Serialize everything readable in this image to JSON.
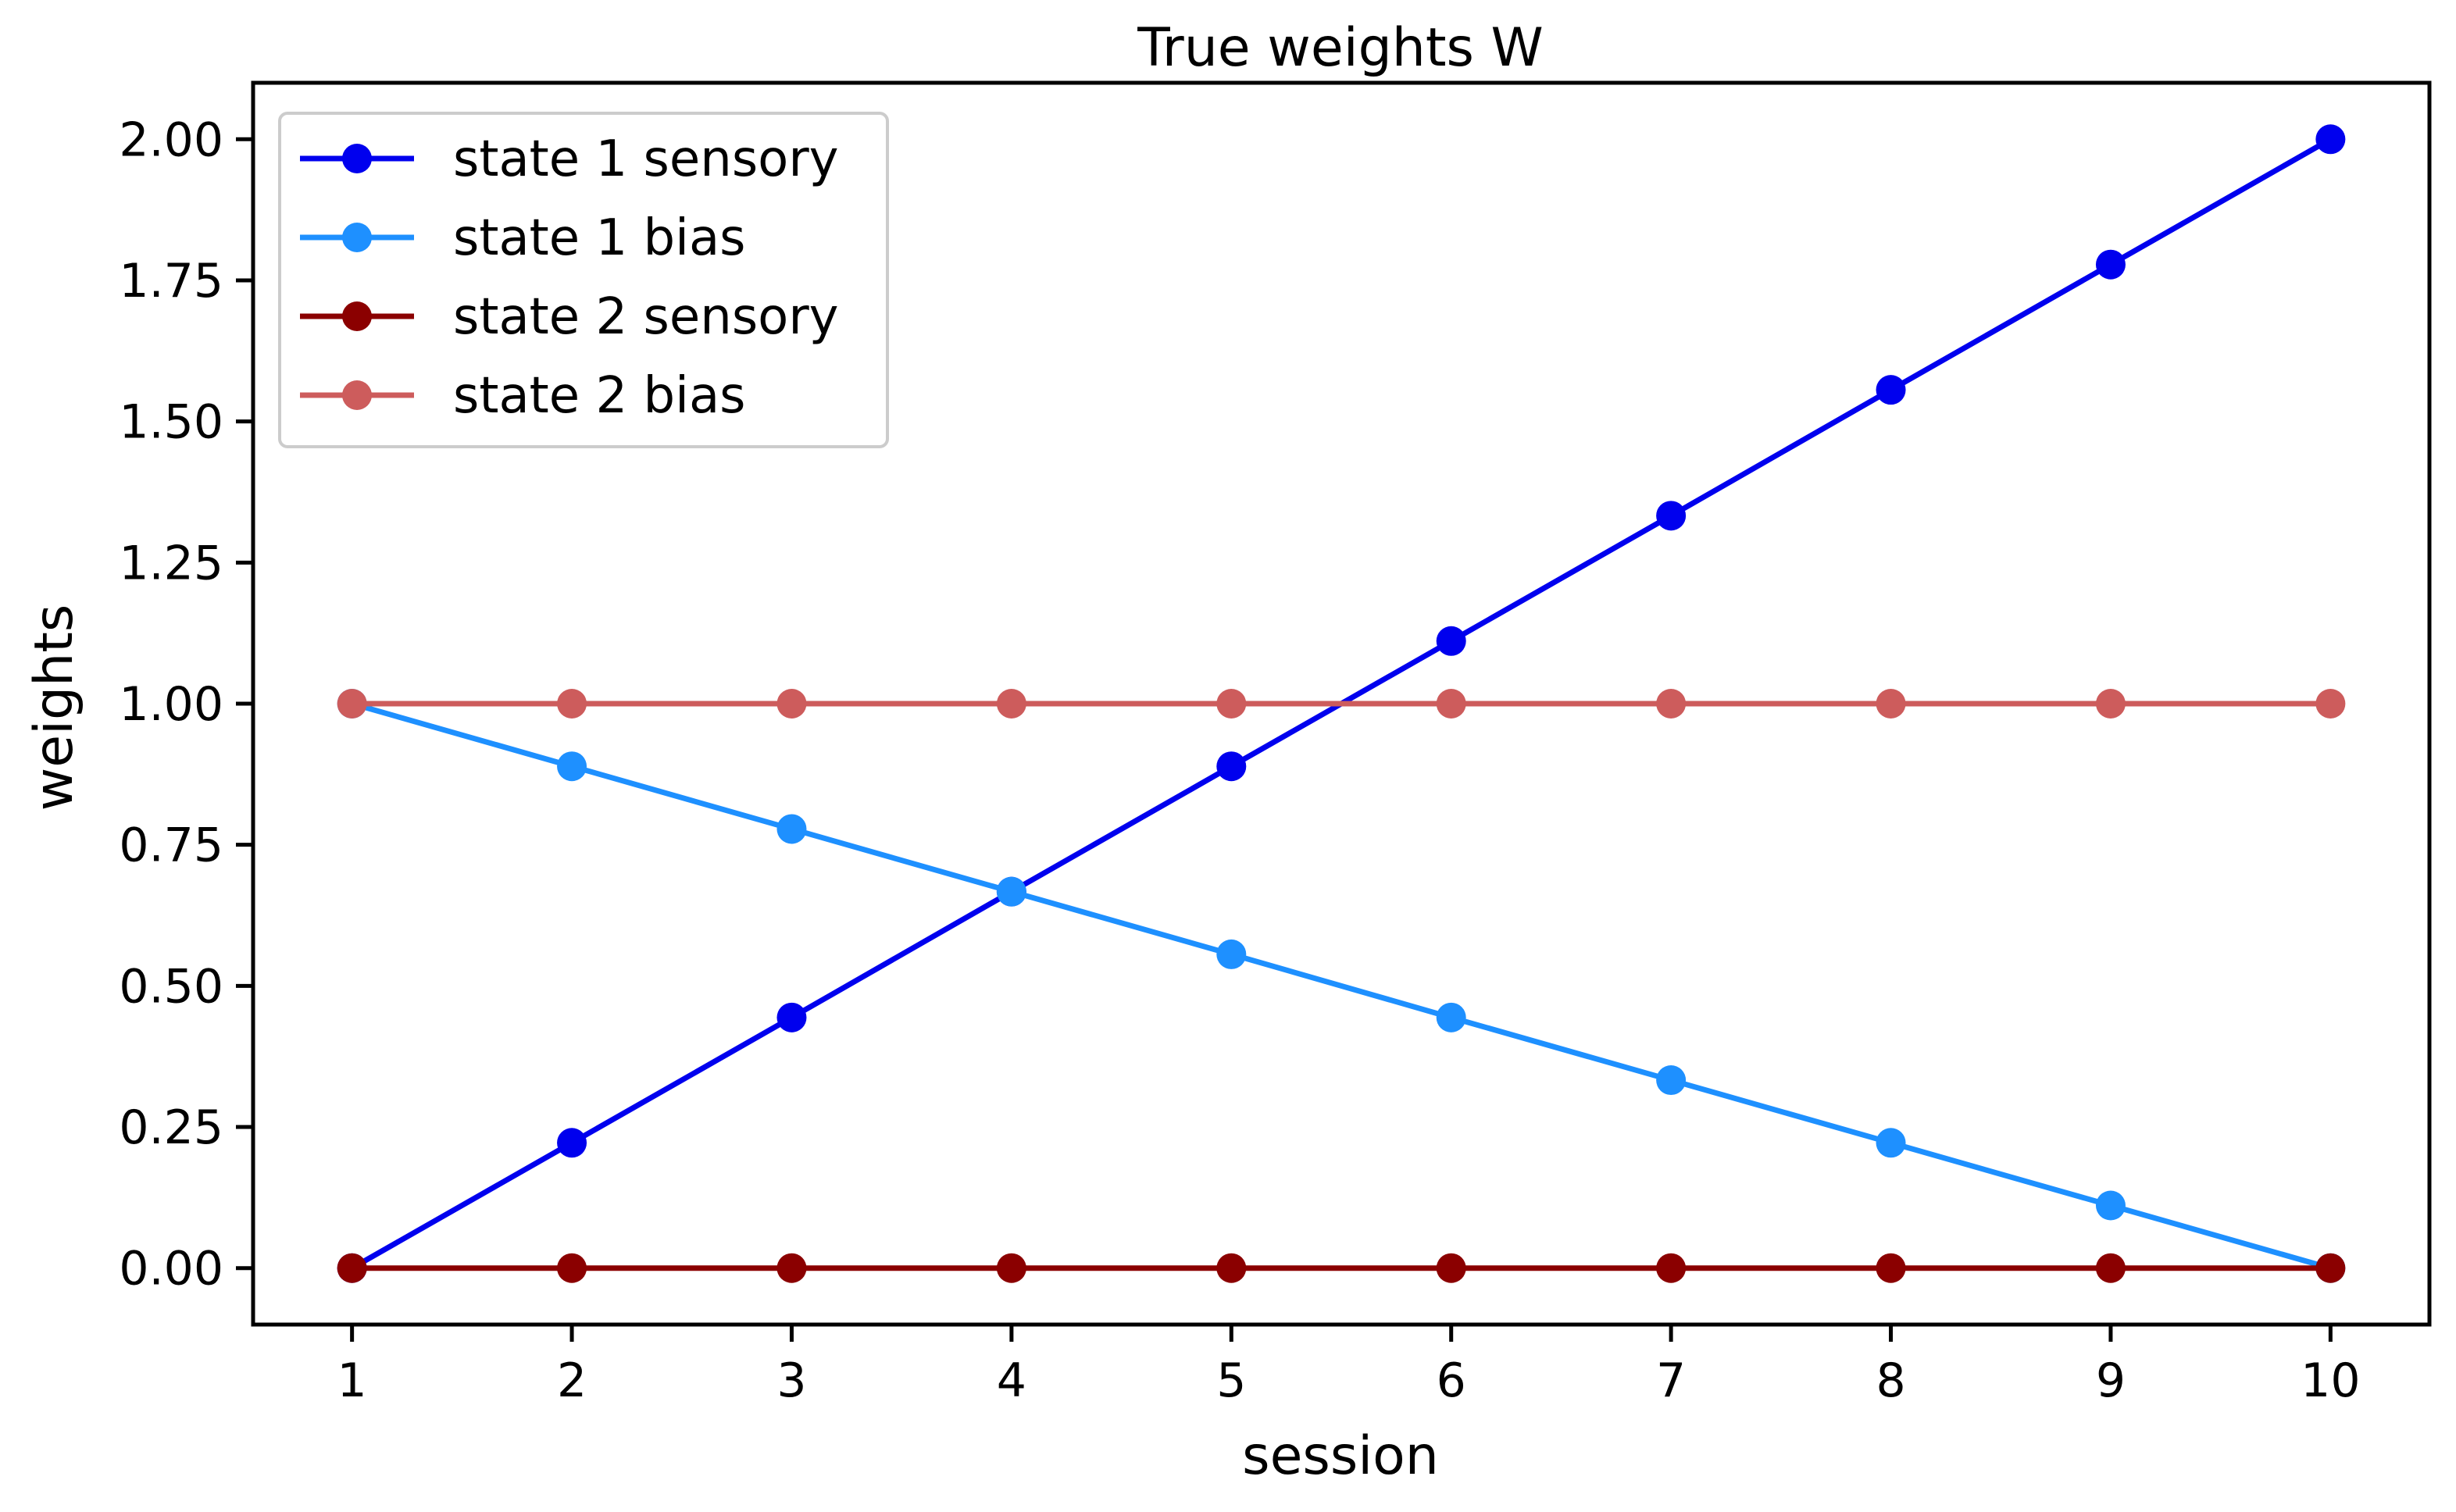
{
  "chart_data": {
    "type": "line",
    "title": "True weights W",
    "xlabel": "session",
    "ylabel": "weights",
    "xlim": [
      0.55,
      10.45
    ],
    "ylim": [
      -0.1,
      2.1
    ],
    "x": [
      1,
      2,
      3,
      4,
      5,
      6,
      7,
      8,
      9,
      10
    ],
    "x_ticks": [
      "1",
      "2",
      "3",
      "4",
      "5",
      "6",
      "7",
      "8",
      "9",
      "10"
    ],
    "y_ticks": [
      "0.00",
      "0.25",
      "0.50",
      "0.75",
      "1.00",
      "1.25",
      "1.50",
      "1.75",
      "2.00"
    ],
    "grid": false,
    "legend_position": "top-left",
    "series": [
      {
        "name": "state 1 sensory",
        "color": "#0000ee",
        "values": [
          0.0,
          0.222,
          0.444,
          0.667,
          0.889,
          1.111,
          1.333,
          1.556,
          1.778,
          2.0
        ]
      },
      {
        "name": "state 1 bias",
        "color": "#1e90ff",
        "values": [
          1.0,
          0.889,
          0.778,
          0.667,
          0.556,
          0.444,
          0.333,
          0.222,
          0.111,
          0.0
        ]
      },
      {
        "name": "state 2 sensory",
        "color": "#8b0000",
        "values": [
          0.0,
          0.0,
          0.0,
          0.0,
          0.0,
          0.0,
          0.0,
          0.0,
          0.0,
          0.0
        ]
      },
      {
        "name": "state 2 bias",
        "color": "#cd5c5c",
        "values": [
          1.0,
          1.0,
          1.0,
          1.0,
          1.0,
          1.0,
          1.0,
          1.0,
          1.0,
          1.0
        ]
      }
    ]
  }
}
